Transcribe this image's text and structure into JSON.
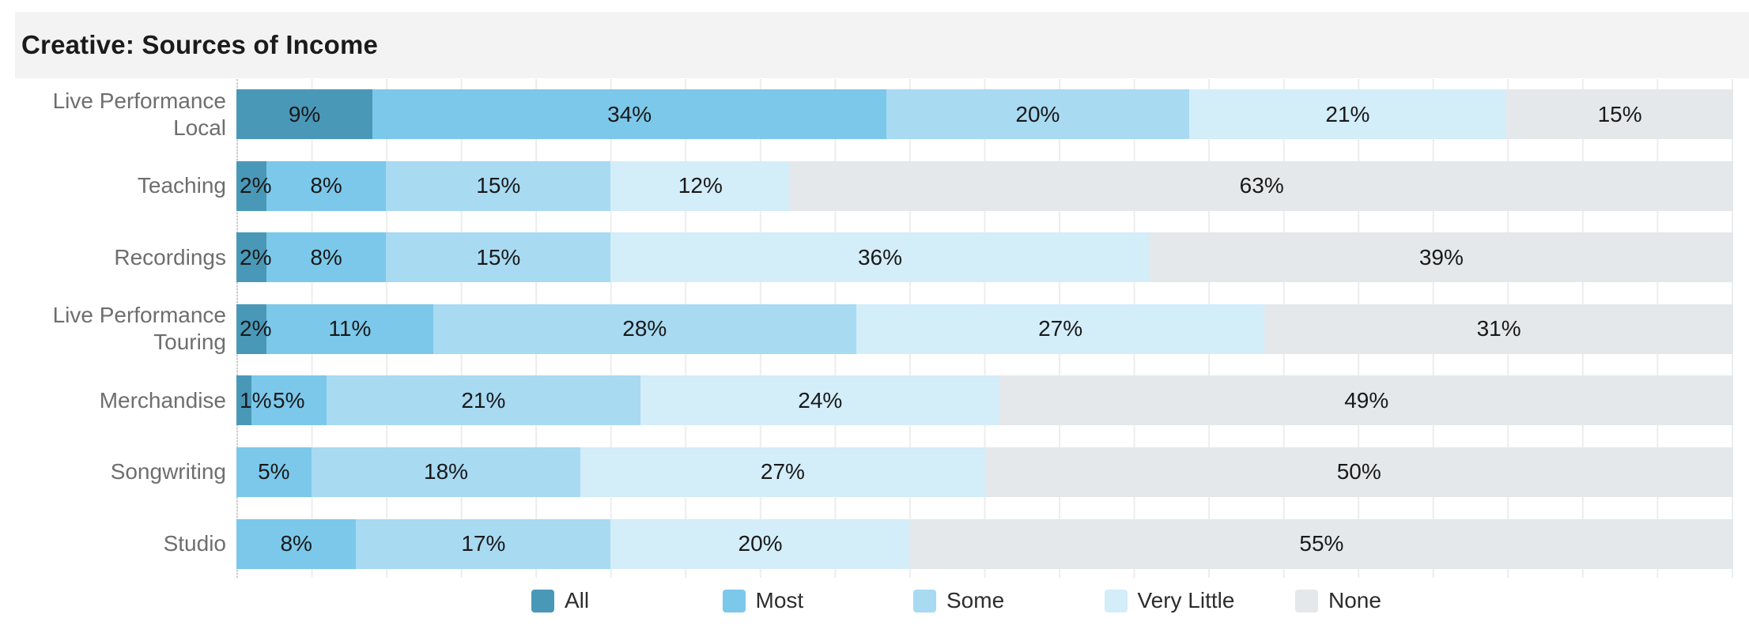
{
  "title": "Creative: Sources of Income",
  "legend": [
    {
      "label": "All",
      "color": "#4a98b8"
    },
    {
      "label": "Most",
      "color": "#7cc8ea"
    },
    {
      "label": "Some",
      "color": "#a8daf2"
    },
    {
      "label": "Very Little",
      "color": "#d3edf9"
    },
    {
      "label": "None",
      "color": "#e5e8eb"
    }
  ],
  "category_labels": [
    "Live Performance\nLocal",
    "Teaching",
    "Recordings",
    "Live Performance\nTouring",
    "Merchandise",
    "Songwriting",
    "Studio"
  ],
  "chart_data": {
    "type": "bar",
    "stacked": true,
    "orientation": "horizontal",
    "normalized_to_100": true,
    "title": "Creative: Sources of Income",
    "categories": [
      "Live Performance Local",
      "Teaching",
      "Recordings",
      "Live Performance Touring",
      "Merchandise",
      "Songwriting",
      "Studio"
    ],
    "series": [
      {
        "name": "All",
        "color": "#4a98b8",
        "values": [
          9,
          2,
          2,
          2,
          1,
          0,
          0
        ]
      },
      {
        "name": "Most",
        "color": "#7cc8ea",
        "values": [
          34,
          8,
          8,
          11,
          5,
          5,
          8
        ]
      },
      {
        "name": "Some",
        "color": "#a8daf2",
        "values": [
          20,
          15,
          15,
          28,
          21,
          18,
          17
        ]
      },
      {
        "name": "Very Little",
        "color": "#d3edf9",
        "values": [
          21,
          12,
          36,
          27,
          24,
          27,
          20
        ]
      },
      {
        "name": "None",
        "color": "#e5e8eb",
        "values": [
          15,
          63,
          39,
          31,
          49,
          50,
          55
        ]
      }
    ],
    "unit": "%",
    "value_labels": true,
    "xlim": [
      0,
      100
    ],
    "gridlines": "vertical every 5%",
    "axis_line": "dotted at 0%",
    "legend_position": "bottom"
  },
  "colors": {
    "title_band_bg": "#f3f3f3",
    "title_text": "#1b1b1b",
    "category_label_text": "#6e6e6e",
    "value_label_text": "#191919",
    "gridline": "#ededed",
    "axis_dotted_line": "#cccccc",
    "background": "#ffffff"
  }
}
